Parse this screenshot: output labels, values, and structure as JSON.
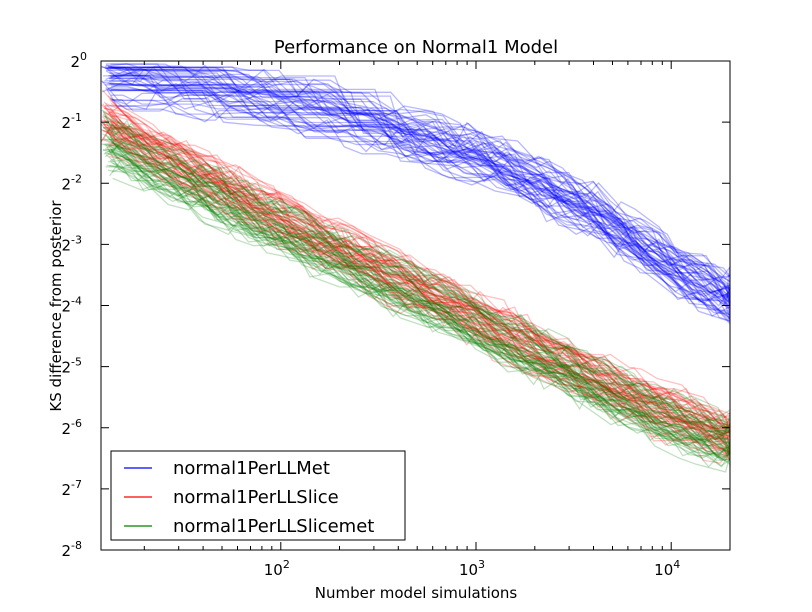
{
  "chart_data": {
    "type": "line",
    "title": "Performance on Normal1 Model",
    "xlabel": "Number model simulations",
    "ylabel": "KS difference from posterior",
    "x_scale": "log10",
    "y_scale": "log2",
    "xlim": [
      12,
      20000
    ],
    "ylim": [
      0.00390625,
      1
    ],
    "x_ticks": [
      {
        "value": 100,
        "base": "10",
        "exp": "2"
      },
      {
        "value": 1000,
        "base": "10",
        "exp": "3"
      },
      {
        "value": 10000,
        "base": "10",
        "exp": "4"
      }
    ],
    "y_ticks": [
      {
        "value": 1,
        "base": "2",
        "exp": "0"
      },
      {
        "value": 0.5,
        "base": "2",
        "exp": "-1"
      },
      {
        "value": 0.25,
        "base": "2",
        "exp": "-2"
      },
      {
        "value": 0.125,
        "base": "2",
        "exp": "-3"
      },
      {
        "value": 0.0625,
        "base": "2",
        "exp": "-4"
      },
      {
        "value": 0.03125,
        "base": "2",
        "exp": "-5"
      },
      {
        "value": 0.015625,
        "base": "2",
        "exp": "-6"
      },
      {
        "value": 0.0078125,
        "base": "2",
        "exp": "-7"
      },
      {
        "value": 0.00390625,
        "base": "2",
        "exp": "-8"
      }
    ],
    "grid": false,
    "legend_position": "bottom-left",
    "series": [
      {
        "name": "normal1PerLLMet",
        "color": "#0000ff",
        "x": [
          12,
          100,
          1000,
          4000,
          10000,
          20000
        ],
        "y": [
          0.84,
          0.62,
          0.35,
          0.18,
          0.1,
          0.068
        ]
      },
      {
        "name": "normal1PerLLSlice",
        "color": "#ff0000",
        "x": [
          12,
          100,
          1000,
          4000,
          10000,
          20000
        ],
        "y": [
          0.5,
          0.164,
          0.054,
          0.027,
          0.018,
          0.014
        ]
      },
      {
        "name": "normal1PerLLSlicemet",
        "color": "#008000",
        "x": [
          12,
          100,
          1000,
          4000,
          10000,
          20000
        ],
        "y": [
          0.42,
          0.15,
          0.052,
          0.026,
          0.017,
          0.0134
        ]
      }
    ]
  }
}
